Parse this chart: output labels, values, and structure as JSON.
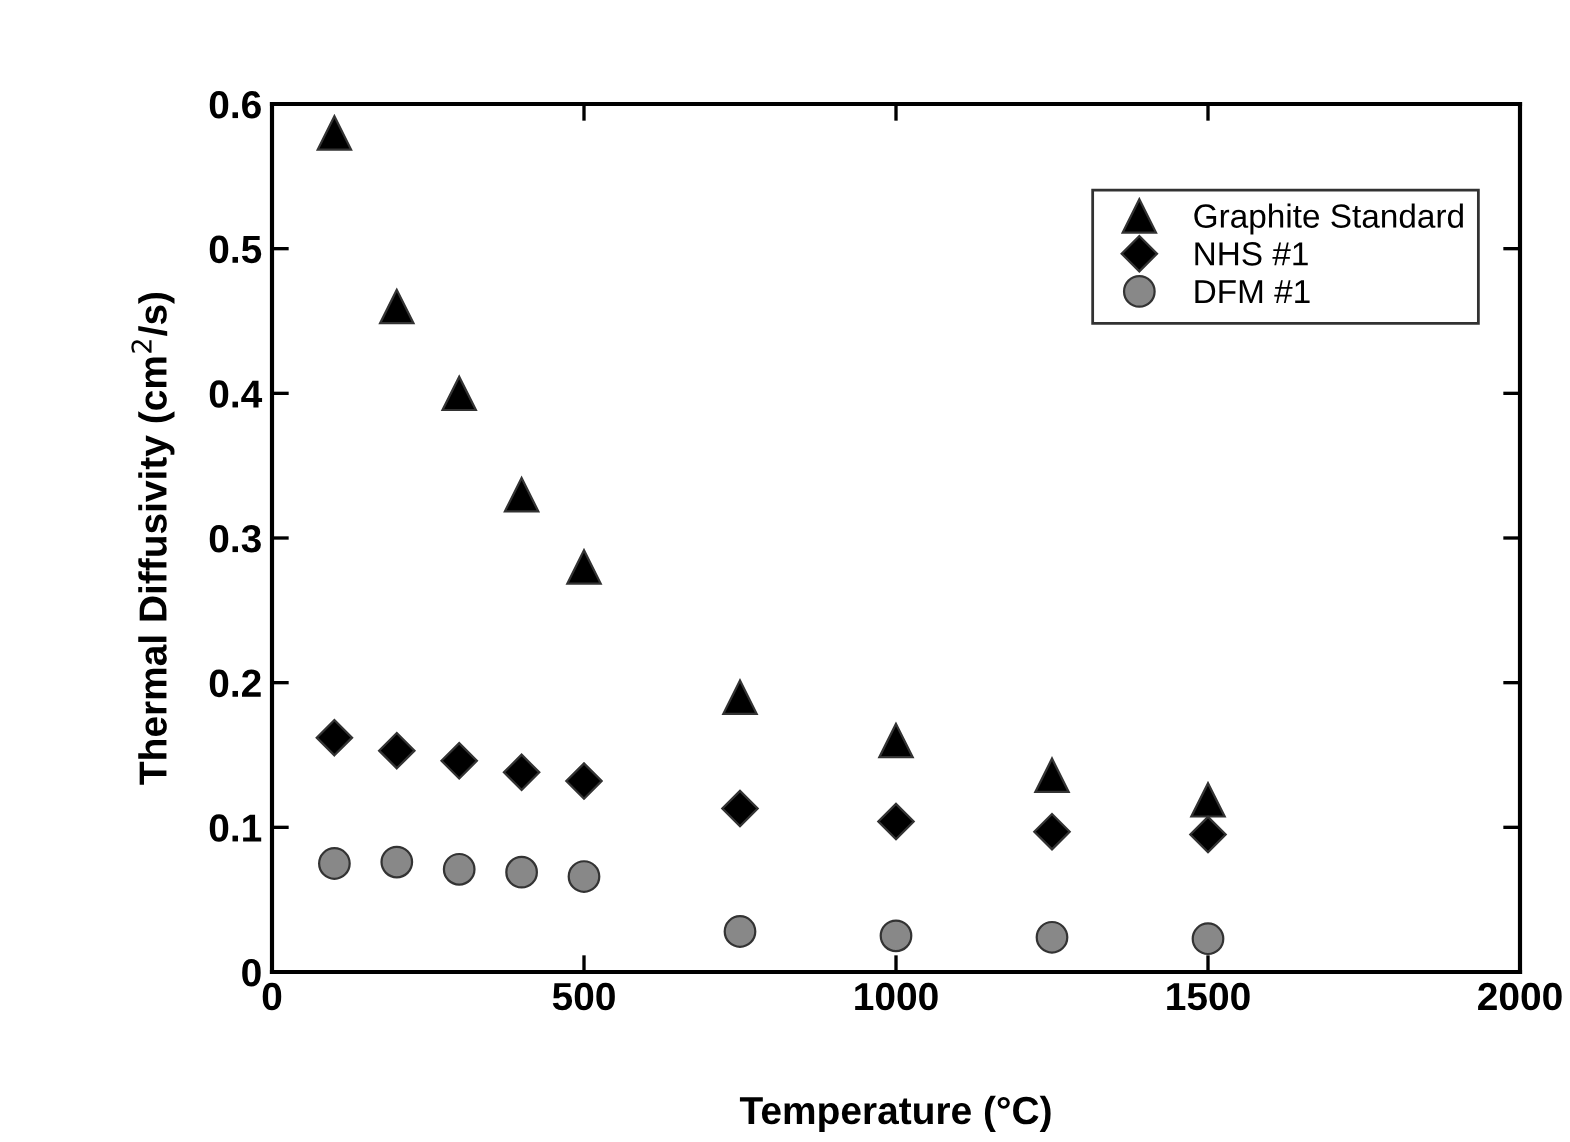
{
  "chart_data": {
    "type": "scatter",
    "xlabel": "Temperature (°C)",
    "ylabel": "Thermal Diffusivity (cm$^{2}$/s)",
    "x": [
      100,
      200,
      300,
      400,
      500,
      750,
      1000,
      1250,
      1500
    ],
    "series": [
      {
        "name": "Graphite Standard",
        "color": "#000000",
        "marker": "triangle",
        "values": [
          0.58,
          0.46,
          0.4,
          0.33,
          0.28,
          0.19,
          0.16,
          0.136,
          0.119
        ]
      },
      {
        "name": "NHS #1",
        "color": "#000000",
        "marker": "diamond",
        "values": [
          0.162,
          0.153,
          0.146,
          0.138,
          0.132,
          0.113,
          0.104,
          0.097,
          0.095
        ]
      },
      {
        "name": "DFM #1",
        "color": "#888888",
        "marker": "circle",
        "values": [
          0.075,
          0.076,
          0.071,
          0.069,
          0.066,
          0.028,
          0.025,
          0.024,
          0.023
        ]
      }
    ],
    "xlim": [
      0,
      2000
    ],
    "xticks": [
      0,
      500,
      1000,
      1500,
      2000
    ],
    "ylim": [
      0,
      0.6
    ],
    "yticks": [
      0,
      0.1,
      0.2,
      0.3,
      0.4,
      0.5,
      0.6
    ],
    "grid": false,
    "legend": "top right"
  }
}
